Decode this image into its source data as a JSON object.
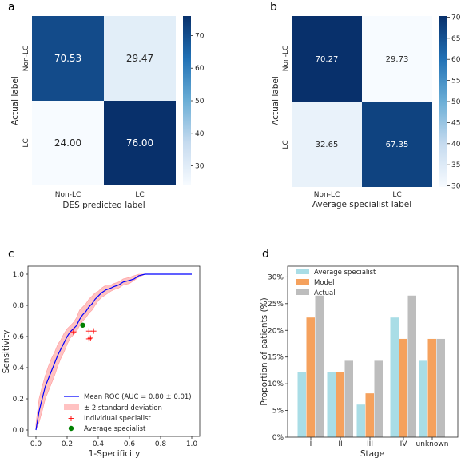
{
  "panels": {
    "a": "a",
    "b": "b",
    "c": "c",
    "d": "d"
  },
  "chart_data": [
    {
      "type": "heatmap",
      "panel": "a",
      "row_labels": [
        "Non-LC",
        "LC"
      ],
      "col_labels": [
        "Non-LC",
        "LC"
      ],
      "values": [
        [
          70.53,
          29.47
        ],
        [
          24.0,
          76.0
        ]
      ],
      "value_labels": [
        [
          "70.53",
          "29.47"
        ],
        [
          "24.00",
          "76.00"
        ]
      ],
      "xlabel": "DES predicted label",
      "ylabel": "Actual label",
      "colorbar": {
        "min": 24.0,
        "max": 76.0,
        "ticks": [
          "30",
          "40",
          "50",
          "60",
          "70"
        ],
        "tick_values": [
          30,
          40,
          50,
          60,
          70
        ]
      }
    },
    {
      "type": "heatmap",
      "panel": "b",
      "row_labels": [
        "Non-LC",
        "LC"
      ],
      "col_labels": [
        "Non-LC",
        "LC"
      ],
      "values": [
        [
          70.27,
          29.73
        ],
        [
          32.65,
          67.35
        ]
      ],
      "value_labels": [
        [
          "70.27",
          "29.73"
        ],
        [
          "32.65",
          "67.35"
        ]
      ],
      "xlabel": "Average specialist label",
      "ylabel": "Actual label",
      "colorbar": {
        "min": 29.73,
        "max": 70.27,
        "ticks": [
          "30",
          "35",
          "40",
          "45",
          "50",
          "55",
          "60",
          "65",
          "70"
        ],
        "tick_values": [
          30,
          35,
          40,
          45,
          50,
          55,
          60,
          65,
          70
        ]
      }
    },
    {
      "type": "line",
      "panel": "c",
      "xlabel": "1-Specificity",
      "ylabel": "Sensitivity",
      "xlim": [
        0,
        1
      ],
      "ylim": [
        0,
        1
      ],
      "xticks": [
        "0.0",
        "0.2",
        "0.4",
        "0.6",
        "0.8",
        "1.0"
      ],
      "yticks": [
        "0.0",
        "0.2",
        "0.4",
        "0.6",
        "0.8",
        "1.0"
      ],
      "mean_roc": {
        "name": "Mean ROC (AUC = 0.80 ± 0.01)",
        "color": "#0000ff",
        "x": [
          0.0,
          0.02,
          0.04,
          0.06,
          0.08,
          0.1,
          0.12,
          0.14,
          0.16,
          0.18,
          0.2,
          0.22,
          0.24,
          0.26,
          0.28,
          0.3,
          0.32,
          0.34,
          0.36,
          0.38,
          0.4,
          0.42,
          0.45,
          0.48,
          0.5,
          0.53,
          0.56,
          0.6,
          0.63,
          0.66,
          0.7,
          1.0
        ],
        "y": [
          0.0,
          0.12,
          0.2,
          0.28,
          0.33,
          0.38,
          0.43,
          0.48,
          0.52,
          0.56,
          0.6,
          0.63,
          0.65,
          0.67,
          0.71,
          0.74,
          0.76,
          0.79,
          0.81,
          0.84,
          0.86,
          0.88,
          0.9,
          0.91,
          0.92,
          0.93,
          0.95,
          0.96,
          0.97,
          0.99,
          1.0,
          1.0
        ]
      },
      "band": {
        "name": "± 2 standard deviation",
        "color": "#ffb6b6",
        "lower": [
          0.0,
          0.05,
          0.12,
          0.2,
          0.25,
          0.3,
          0.35,
          0.41,
          0.46,
          0.5,
          0.55,
          0.59,
          0.61,
          0.63,
          0.67,
          0.7,
          0.72,
          0.75,
          0.77,
          0.8,
          0.83,
          0.85,
          0.87,
          0.89,
          0.9,
          0.91,
          0.93,
          0.94,
          0.96,
          0.98,
          1.0,
          1.0
        ],
        "upper": [
          0.04,
          0.2,
          0.28,
          0.35,
          0.41,
          0.46,
          0.5,
          0.55,
          0.58,
          0.62,
          0.65,
          0.67,
          0.69,
          0.72,
          0.77,
          0.79,
          0.81,
          0.84,
          0.86,
          0.88,
          0.89,
          0.91,
          0.93,
          0.93,
          0.94,
          0.95,
          0.97,
          0.98,
          0.99,
          1.0,
          1.0,
          1.0
        ]
      },
      "individual_specialist": {
        "name": "Individual specialist",
        "color": "#ff0000",
        "x": [
          0.24,
          0.34,
          0.37,
          0.34,
          0.35
        ],
        "y": [
          0.63,
          0.635,
          0.635,
          0.585,
          0.59
        ]
      },
      "average_specialist": {
        "name": "Average specialist",
        "color": "#008000",
        "x": [
          0.3
        ],
        "y": [
          0.673
        ]
      },
      "legend_position": "lower-right"
    },
    {
      "type": "bar",
      "panel": "d",
      "categories": [
        "I",
        "II",
        "III",
        "IV",
        "unknown"
      ],
      "xlabel": "Stage",
      "ylabel": "Proportion of patients (%)",
      "ylim": [
        0,
        32
      ],
      "yticks": [
        "0%",
        "5%",
        "10%",
        "15%",
        "20%",
        "25%",
        "30%"
      ],
      "ytick_values": [
        0,
        5,
        10,
        15,
        20,
        25,
        30
      ],
      "series": [
        {
          "name": "Average specialist",
          "color": "#a9dde6",
          "values": [
            12.2,
            12.2,
            6.1,
            22.4,
            14.3
          ]
        },
        {
          "name": "Model",
          "color": "#f5a15d",
          "values": [
            22.4,
            12.2,
            8.2,
            18.4,
            18.4
          ]
        },
        {
          "name": "Actual",
          "color": "#bdbdbd",
          "values": [
            26.5,
            14.3,
            14.3,
            26.5,
            18.4
          ]
        }
      ],
      "legend_position": "top-left"
    }
  ]
}
